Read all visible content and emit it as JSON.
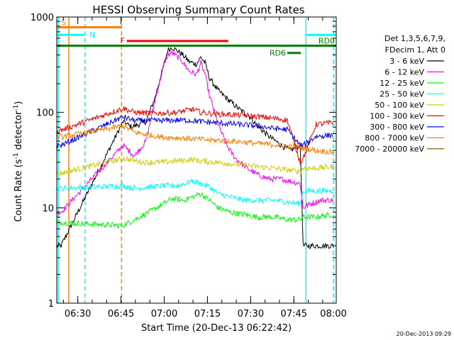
{
  "chart_data": {
    "type": "line",
    "title": "HESSI Observing Summary Count Rates",
    "xlabel": "Start Time (20-Dec-13 06:22:42)",
    "ylabel_main": "Count Rate (s",
    "ylabel_sup1": "-1",
    "ylabel_mid": " detector",
    "ylabel_sup2": "-1",
    "ylabel_end": ")",
    "x_range_minutes": [
      0,
      97
    ],
    "x_ticks": [
      "06:30",
      "06:45",
      "07:00",
      "07:15",
      "07:30",
      "07:45",
      "08:00"
    ],
    "x_tick_minutes": [
      7.3,
      22.3,
      37.3,
      52.3,
      67.3,
      82.3,
      97.3
    ],
    "y_scale": "log",
    "ylim": [
      1,
      1000
    ],
    "y_ticks": [
      "1000",
      "100",
      "10",
      "1"
    ],
    "y_tick_values": [
      1000,
      100,
      10,
      1
    ],
    "legend_header": [
      "Det 1,3,5,6,7,9,",
      "FDecim 1, Att 0"
    ],
    "series": [
      {
        "name": "3 - 6 keV",
        "color": "#000000",
        "x": [
          0,
          1.5,
          23,
          26,
          31,
          34,
          37,
          38.5,
          40,
          43,
          46,
          48.5,
          50,
          51.5,
          53,
          56,
          59,
          63,
          67,
          70,
          74,
          78,
          81,
          84.5,
          85.5,
          87,
          89,
          92,
          96
        ],
        "y": [
          4,
          4,
          80,
          70,
          80,
          140,
          300,
          450,
          480,
          420,
          340,
          320,
          380,
          330,
          230,
          170,
          140,
          110,
          90,
          70,
          55,
          45,
          40,
          45,
          4,
          4,
          4,
          4,
          4
        ]
      },
      {
        "name": "6 - 12 keV",
        "color": "#ff00ff",
        "x": [
          0,
          1.5,
          23,
          27,
          31,
          34,
          37,
          38.5,
          40,
          43,
          46,
          48.5,
          50,
          51.5,
          53,
          56,
          59,
          62,
          66,
          70,
          74,
          78,
          81,
          84.5,
          85.5,
          88,
          92,
          96
        ],
        "y": [
          9,
          9,
          45,
          35,
          50,
          130,
          300,
          400,
          420,
          360,
          270,
          250,
          330,
          250,
          150,
          75,
          45,
          33,
          26,
          22,
          20,
          20,
          19,
          18,
          10,
          11,
          12,
          12
        ]
      },
      {
        "name": "12 - 25 keV",
        "color": "#00ff00",
        "x": [
          0,
          1.5,
          23,
          27,
          32,
          37,
          40,
          44,
          47,
          50,
          53,
          56,
          60,
          65,
          70,
          75,
          80,
          84.5,
          85.5,
          90,
          96
        ],
        "y": [
          7,
          7,
          6.5,
          7.5,
          9,
          11,
          12.5,
          12,
          13,
          14,
          12,
          10,
          9,
          8.5,
          8,
          8,
          7.5,
          7.5,
          8,
          8,
          8.5
        ]
      },
      {
        "name": "25 - 50 keV",
        "color": "#00ffff",
        "x": [
          0,
          1.5,
          23,
          27,
          32,
          37,
          42,
          47,
          50,
          53,
          56,
          60,
          65,
          70,
          75,
          80,
          84.5,
          85.5,
          90,
          96
        ],
        "y": [
          16,
          16,
          17,
          16,
          16.5,
          17,
          17,
          19,
          18,
          16.5,
          14,
          13,
          12,
          12,
          12,
          11.5,
          11,
          15,
          15,
          15
        ]
      },
      {
        "name": "50 - 100 keV",
        "color": "#cccc00",
        "x": [
          0,
          1.5,
          23,
          30,
          37,
          42,
          47,
          50,
          55,
          60,
          65,
          70,
          75,
          80,
          84.5,
          85.5,
          90,
          96
        ],
        "y": [
          23,
          23,
          33,
          30,
          30,
          31,
          32,
          31,
          30,
          29,
          28,
          27,
          26,
          25,
          24,
          26,
          26,
          27
        ]
      },
      {
        "name": "100 - 300 keV",
        "color": "#ff0000",
        "x": [
          0,
          1.5,
          23,
          27,
          32,
          37,
          42,
          47,
          50,
          55,
          60,
          65,
          70,
          75,
          80,
          84.5,
          85.5,
          90,
          96
        ],
        "y": [
          65,
          65,
          110,
          100,
          98,
          98,
          100,
          108,
          100,
          96,
          95,
          93,
          90,
          87,
          83,
          30,
          33,
          75,
          78
        ]
      },
      {
        "name": "300 - 800 keV",
        "color": "#0000ff",
        "x": [
          0,
          1.5,
          23,
          27,
          32,
          37,
          42,
          47,
          50,
          55,
          60,
          65,
          70,
          75,
          80,
          84.5,
          85.5,
          90,
          96
        ],
        "y": [
          45,
          45,
          90,
          82,
          82,
          82,
          83,
          82,
          80,
          78,
          76,
          74,
          72,
          68,
          66,
          45,
          45,
          56,
          58
        ]
      },
      {
        "name": "800 - 7000 keV",
        "color": "#ff8000",
        "x": [
          0,
          1.5,
          23,
          27,
          32,
          37,
          42,
          47,
          50,
          55,
          60,
          65,
          70,
          75,
          80,
          84.5,
          85.5,
          90,
          96
        ],
        "y": [
          55,
          55,
          72,
          62,
          58,
          55,
          54,
          53,
          52,
          51,
          50,
          49,
          47,
          46,
          44,
          43,
          42,
          40,
          38
        ]
      },
      {
        "name": "7000 - 20000 keV",
        "color": "#7f5f00",
        "x": [],
        "y": []
      }
    ],
    "flag_bars": [
      {
        "label": "S",
        "color": "#ff8000",
        "start": 0,
        "end": 22.5,
        "level": 780
      },
      {
        "label": "N",
        "color": "#00ffff",
        "start": 0,
        "end": 9.8,
        "level": 650
      },
      {
        "label": "N",
        "color": "#00ffff",
        "start": 86.5,
        "end": 97,
        "level": 650
      },
      {
        "label": "F",
        "color": "#ff0000",
        "start": 24.3,
        "end": 59.5,
        "level": 560
      },
      {
        "label": "RD0",
        "color": "#008000",
        "start": 0,
        "end": 97,
        "level": 500
      },
      {
        "label": "RD6",
        "color": "#008000",
        "start": 80,
        "end": 84.7,
        "level": 420
      }
    ],
    "vlines": [
      {
        "minute": 0.5,
        "color": "#00ffff",
        "style": "solid"
      },
      {
        "minute": 4.2,
        "color": "#ff8000",
        "style": "solid"
      },
      {
        "minute": 9.8,
        "color": "#00ffff",
        "style": "dashed"
      },
      {
        "minute": 22.5,
        "color": "#ff8000",
        "style": "dashed"
      },
      {
        "minute": 86.5,
        "color": "#00ffff",
        "style": "solid"
      },
      {
        "minute": 96,
        "color": "#00ffff",
        "style": "dashed"
      }
    ],
    "footer_stamp": "20-Dec-2013 09:29"
  }
}
